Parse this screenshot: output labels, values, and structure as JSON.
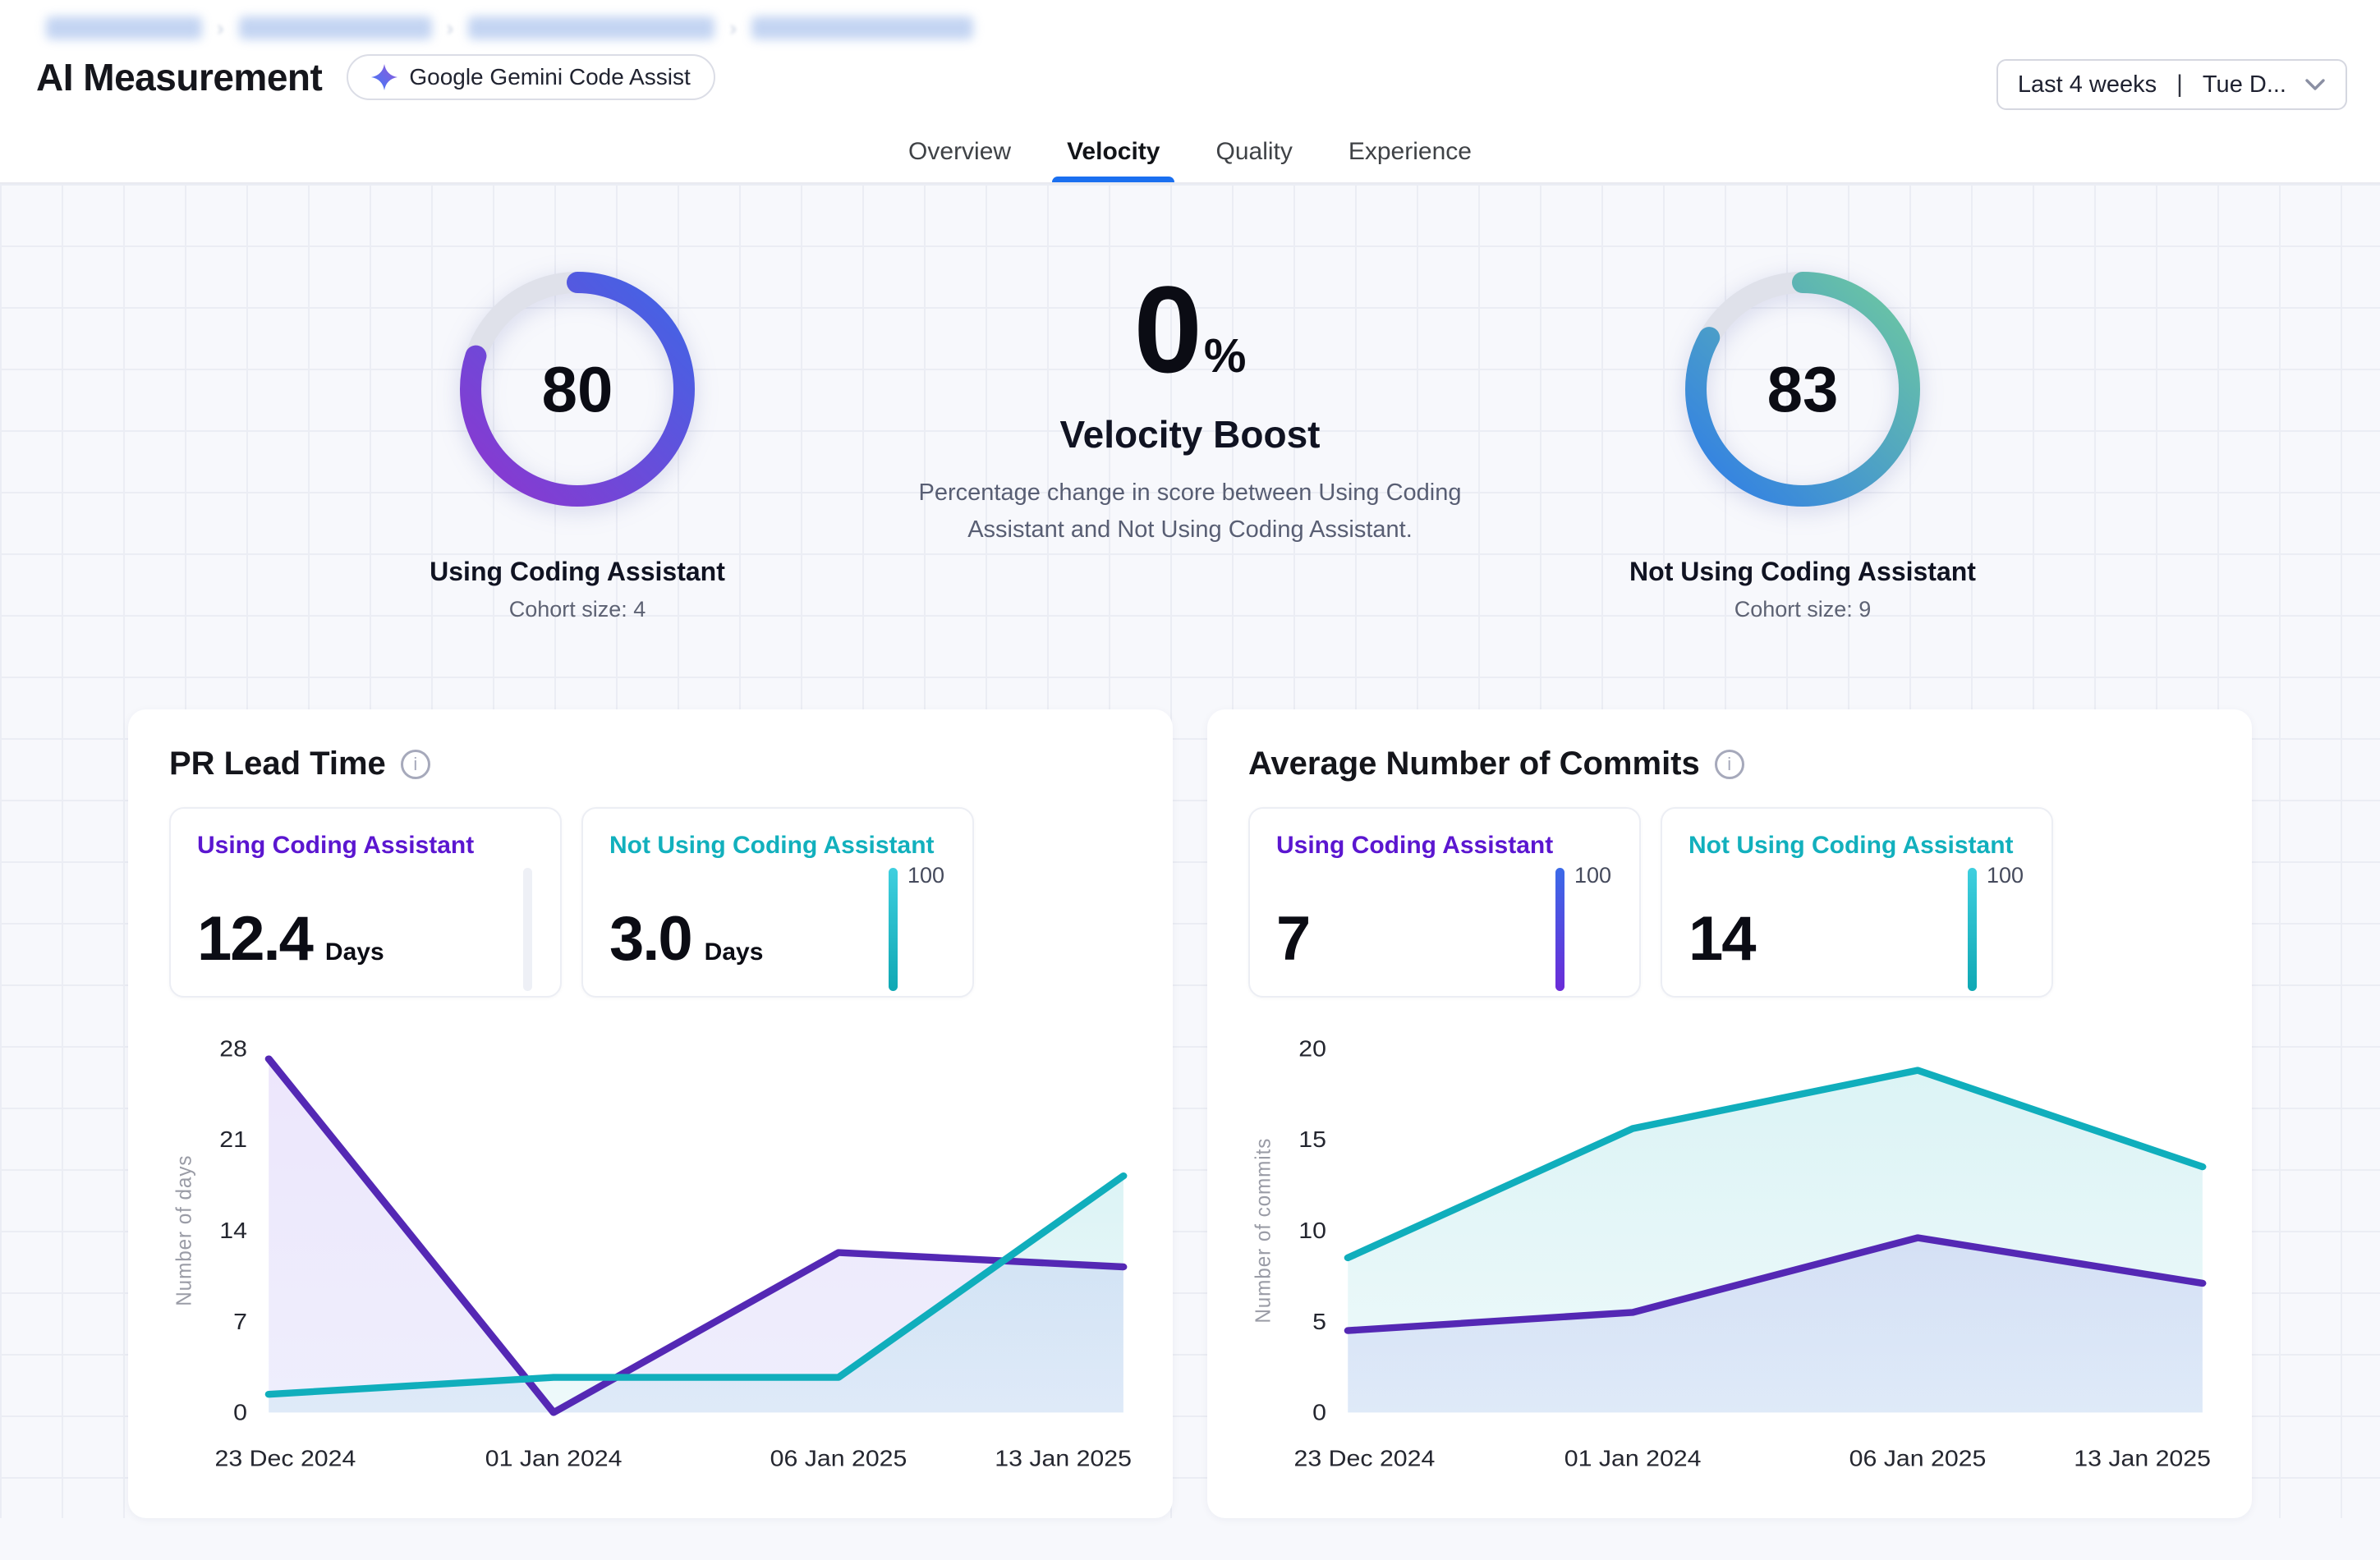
{
  "breadcrumb": {
    "separator": "›",
    "redacted_segments": 4
  },
  "header": {
    "title": "AI Measurement",
    "badge_label": "Google Gemini Code Assist",
    "date_range": "Last 4 weeks",
    "date_divider": "|",
    "date_detail": "Tue D..."
  },
  "tabs": [
    {
      "label": "Overview",
      "active": false
    },
    {
      "label": "Velocity",
      "active": true
    },
    {
      "label": "Quality",
      "active": false
    },
    {
      "label": "Experience",
      "active": false
    }
  ],
  "summary": {
    "left_gauge": {
      "value": 80,
      "label": "Using Coding Assistant",
      "cohort": "Cohort size: 4"
    },
    "boost": {
      "value": "0",
      "unit": "%",
      "title": "Velocity Boost",
      "description": "Percentage change in score between Using Coding Assistant and Not Using Coding Assistant."
    },
    "right_gauge": {
      "value": 83,
      "label": "Not Using Coding Assistant",
      "cohort": "Cohort size: 9"
    }
  },
  "colors": {
    "accent_blue": "#1a6ff0",
    "purple_text": "#5b16d0",
    "teal_text": "#12b0bd",
    "purple_line": "#5428b4",
    "teal_line": "#10aebc",
    "gauge_track": "#dfe1ea",
    "gauge_left_gradient": [
      "#8d36cf",
      "#3f66e6"
    ],
    "gauge_right_gradient": [
      "#2f7ce8",
      "#6ec9a0"
    ],
    "bar_purple_gradient": [
      "#3b6ae8",
      "#6b2bd8"
    ],
    "bar_teal_gradient": [
      "#3fcfdf",
      "#0fa8b4"
    ],
    "bar_empty": "#eef0f6"
  },
  "cards": [
    {
      "title": "PR Lead Time",
      "stats": [
        {
          "label": "Using Coding Assistant",
          "value": "12.4",
          "unit": "Days",
          "scale_label": "",
          "bar": "empty",
          "color": "purple"
        },
        {
          "label": "Not Using Coding Assistant",
          "value": "3.0",
          "unit": "Days",
          "scale_label": "100",
          "bar": "teal",
          "color": "teal"
        }
      ]
    },
    {
      "title": "Average Number of Commits",
      "stats": [
        {
          "label": "Using Coding Assistant",
          "value": "7",
          "unit": "",
          "scale_label": "100",
          "bar": "purple",
          "color": "purple"
        },
        {
          "label": "Not Using Coding Assistant",
          "value": "14",
          "unit": "",
          "scale_label": "100",
          "bar": "teal",
          "color": "teal"
        }
      ]
    }
  ],
  "chart_data": [
    {
      "type": "area",
      "title": "PR Lead Time",
      "x": [
        "23 Dec 2024",
        "01 Jan 2024",
        "06 Jan 2025",
        "13 Jan 2025"
      ],
      "ylabel": "Number of days",
      "ylim": [
        0,
        28
      ],
      "yticks": [
        0,
        7,
        14,
        21,
        28
      ],
      "grid": false,
      "legend": "none",
      "series": [
        {
          "name": "Using Coding Assistant",
          "color": "#5428b4",
          "values": [
            27.2,
            0,
            12.3,
            11.2
          ],
          "fill_top": "rgba(141,99,233,0.16)",
          "fill_bottom": "rgba(125,125,238,0.13)"
        },
        {
          "name": "Not Using Coding Assistant",
          "color": "#10aebc",
          "values": [
            1.4,
            2.7,
            2.7,
            18.2
          ],
          "fill_top": "rgba(18,176,189,0.15)",
          "fill_bottom": "rgba(18,176,189,0.07)"
        }
      ]
    },
    {
      "type": "area",
      "title": "Average Number of Commits",
      "x": [
        "23 Dec 2024",
        "01 Jan 2024",
        "06 Jan 2025",
        "13 Jan 2025"
      ],
      "ylabel": "Number of commits",
      "ylim": [
        0,
        20
      ],
      "yticks": [
        0,
        5,
        10,
        15,
        20
      ],
      "grid": false,
      "legend": "none",
      "series": [
        {
          "name": "Using Coding Assistant",
          "color": "#5428b4",
          "values": [
            4.5,
            5.5,
            9.6,
            7.1
          ],
          "fill_top": "rgba(141,99,233,0.16)",
          "fill_bottom": "rgba(125,125,238,0.13)"
        },
        {
          "name": "Not Using Coding Assistant",
          "color": "#10aebc",
          "values": [
            8.5,
            15.6,
            18.8,
            13.5
          ],
          "fill_top": "rgba(18,176,189,0.15)",
          "fill_bottom": "rgba(18,176,189,0.07)"
        }
      ]
    }
  ]
}
